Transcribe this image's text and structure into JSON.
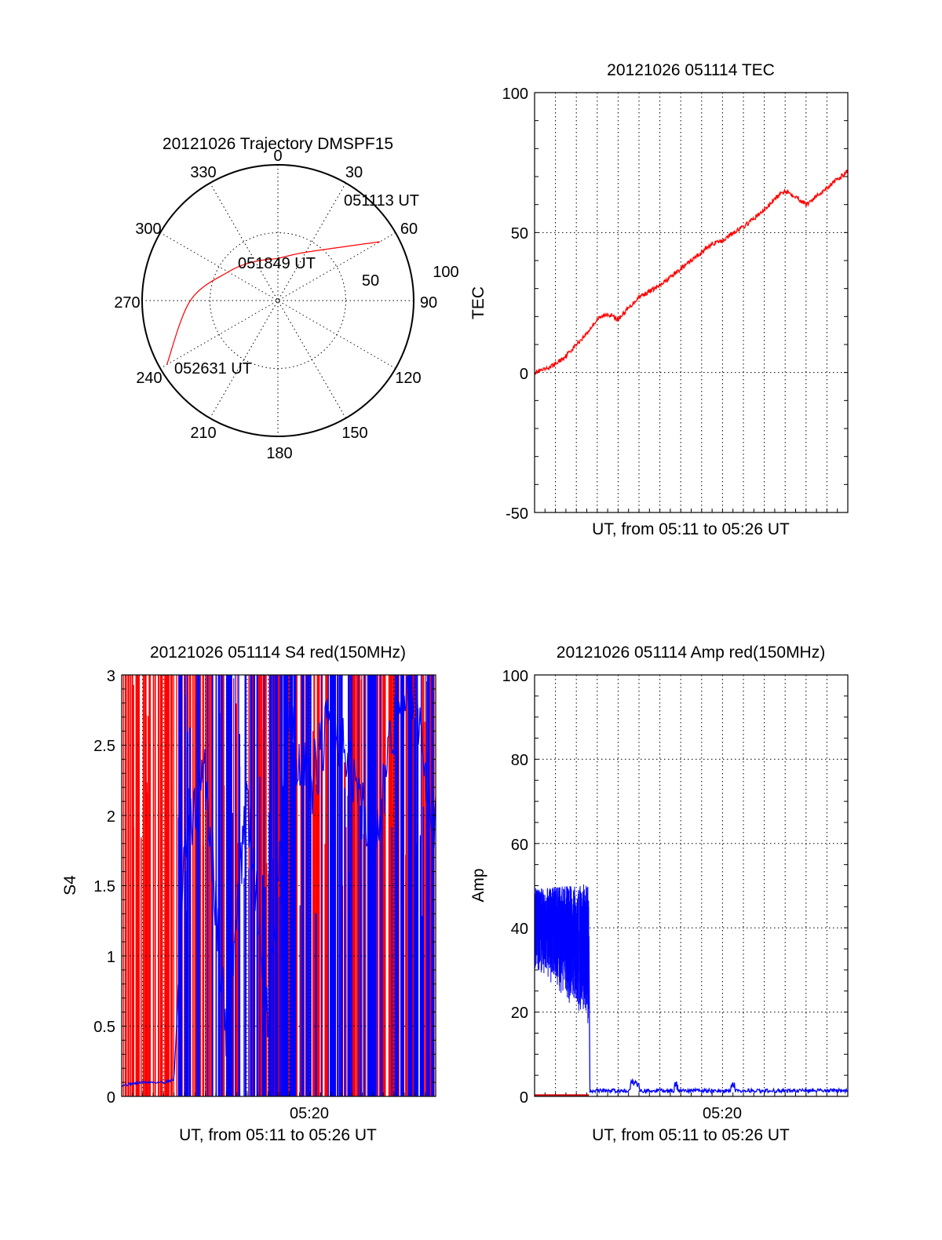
{
  "chart_data": [
    {
      "type": "polar",
      "title": "20121026 Trajectory DMSPF15",
      "angle_labels": [
        "0",
        "30",
        "60",
        "90",
        "120",
        "150",
        "180",
        "210",
        "240",
        "270",
        "300",
        "330"
      ],
      "radial_labels": [
        "50",
        "100"
      ],
      "r_range": [
        0,
        100
      ],
      "grid": true,
      "trajectory": {
        "color": "#ff0000",
        "points": [
          {
            "az": 60,
            "el": 12
          },
          {
            "az": 30,
            "el": 53
          },
          {
            "az": 0,
            "el": 62
          },
          {
            "az": 330,
            "el": 60
          },
          {
            "az": 300,
            "el": 52
          },
          {
            "az": 270,
            "el": 32
          },
          {
            "az": 240,
            "el": 5
          }
        ]
      },
      "annotations": [
        "051113 UT",
        "051849 UT",
        "052631 UT"
      ]
    },
    {
      "type": "line",
      "title": "20121026 051114 TEC",
      "xlabel": "UT, from 05:11 to 05:26 UT",
      "ylabel": "TEC",
      "ylim": [
        -50,
        100
      ],
      "yticks": [
        "100",
        "50",
        "0",
        "-50"
      ],
      "grid": true,
      "series": [
        {
          "color": "#ff0000",
          "x_minutes": [
            0,
            0.5,
            1,
            1.5,
            2,
            2.5,
            3,
            3.5,
            4,
            4.5,
            5,
            5.5,
            6,
            6.5,
            7,
            7.5,
            8,
            8.5,
            9,
            9.5,
            10,
            10.5,
            11,
            11.5,
            12,
            12.5,
            13,
            13.5,
            14,
            14.5,
            15
          ],
          "values": [
            0,
            1,
            3,
            6,
            10,
            14,
            19,
            21,
            19,
            23,
            27,
            29,
            31,
            34,
            37,
            40,
            43,
            46,
            47,
            50,
            52,
            55,
            58,
            62,
            65,
            63,
            60,
            63,
            66,
            69,
            72
          ]
        }
      ]
    },
    {
      "type": "line",
      "title": "20121026 051114 S4 red(150MHz)",
      "xlabel": "UT, from 05:11 to 05:26 UT",
      "ylabel": "S4",
      "ylim": [
        0,
        3
      ],
      "yticks": [
        "3",
        "2.5",
        "2",
        "1.5",
        "1",
        "0.5",
        "0"
      ],
      "xtick_label": "05:20",
      "grid": true,
      "series": [
        {
          "color": "#ff0000",
          "values_desc": "dense spikes reaching 3 across whole interval"
        },
        {
          "color": "#0000ff",
          "x_minutes": [
            0,
            0.5,
            1,
            1.5,
            2,
            2.5,
            3,
            4,
            5,
            6,
            7,
            8,
            9,
            10,
            11,
            12,
            13,
            14,
            15
          ],
          "values": [
            0.08,
            0.09,
            0.1,
            0.1,
            0.1,
            0.12,
            1.7,
            2.3,
            0.45,
            2.1,
            0.6,
            2.6,
            2.2,
            2.7,
            2.3,
            1.8,
            2.6,
            2.9,
            1.9
          ]
        }
      ]
    },
    {
      "type": "line",
      "title": "20121026 051114 Amp red(150MHz)",
      "xlabel": "UT, from 05:11 to 05:26 UT",
      "ylabel": "Amp",
      "ylim": [
        0,
        100
      ],
      "yticks": [
        "100",
        "80",
        "60",
        "40",
        "20",
        "0"
      ],
      "xtick_label": "05:20",
      "grid": true,
      "series": [
        {
          "color": "#0000ff",
          "x_minutes": [
            0,
            0.5,
            1,
            1.5,
            2,
            2.5,
            2.6,
            3,
            4,
            4.8,
            5,
            6,
            7,
            6.8,
            8,
            9,
            9.5,
            10,
            11,
            12,
            13,
            14,
            15
          ],
          "values": [
            43,
            44,
            42,
            41,
            39,
            38,
            38,
            1,
            0.8,
            3,
            0.8,
            0.8,
            0.8,
            3,
            0.8,
            0.8,
            2.5,
            0.8,
            0.8,
            0.8,
            0.8,
            0.8,
            0.8
          ]
        },
        {
          "color": "#ff0000",
          "x_minutes": [
            0,
            2.6
          ],
          "values": [
            0.3,
            0.3
          ]
        }
      ]
    }
  ]
}
